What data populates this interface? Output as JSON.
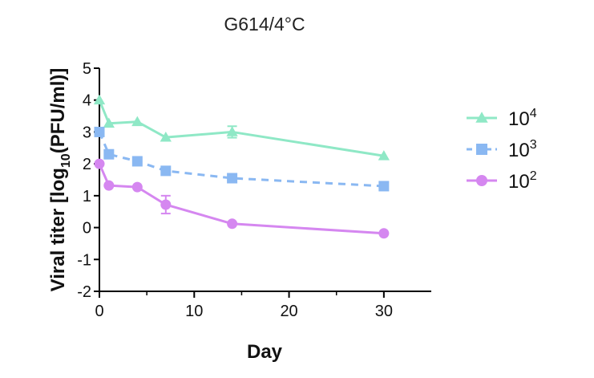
{
  "chart_data": {
    "type": "line",
    "title": "G614/4°C",
    "xlabel": "Day",
    "ylabel": {
      "pre": "Viral titer [log",
      "sub": "10",
      "post": "(PFU/ml)]"
    },
    "xlim": [
      0,
      35
    ],
    "ylim": [
      -2,
      5
    ],
    "xticks": [
      0,
      10,
      20,
      30
    ],
    "yticks": [
      -2,
      -1,
      0,
      1,
      2,
      3,
      4,
      5
    ],
    "grid": false,
    "legend_position": "right",
    "series": [
      {
        "base": "10",
        "exp": "4",
        "color": "#8FE8C6",
        "marker": "triangle",
        "dash": false,
        "x": [
          0,
          1,
          4,
          7,
          14,
          30
        ],
        "y": [
          4.0,
          3.27,
          3.32,
          2.83,
          3.0,
          2.25
        ],
        "err": [
          0,
          0,
          0,
          0,
          0.18,
          0
        ]
      },
      {
        "base": "10",
        "exp": "3",
        "color": "#8AB8F2",
        "marker": "square",
        "dash": true,
        "x": [
          0,
          1,
          4,
          7,
          14,
          30
        ],
        "y": [
          3.0,
          2.3,
          2.08,
          1.78,
          1.55,
          1.3
        ],
        "err": [
          0,
          0,
          0,
          0,
          0,
          0
        ]
      },
      {
        "base": "10",
        "exp": "2",
        "color": "#D587F0",
        "marker": "circle",
        "dash": false,
        "x": [
          0,
          1,
          4,
          7,
          14,
          30
        ],
        "y": [
          2.0,
          1.32,
          1.27,
          0.72,
          0.12,
          -0.18
        ],
        "err": [
          0,
          0,
          0,
          0.28,
          0,
          0
        ]
      }
    ]
  }
}
